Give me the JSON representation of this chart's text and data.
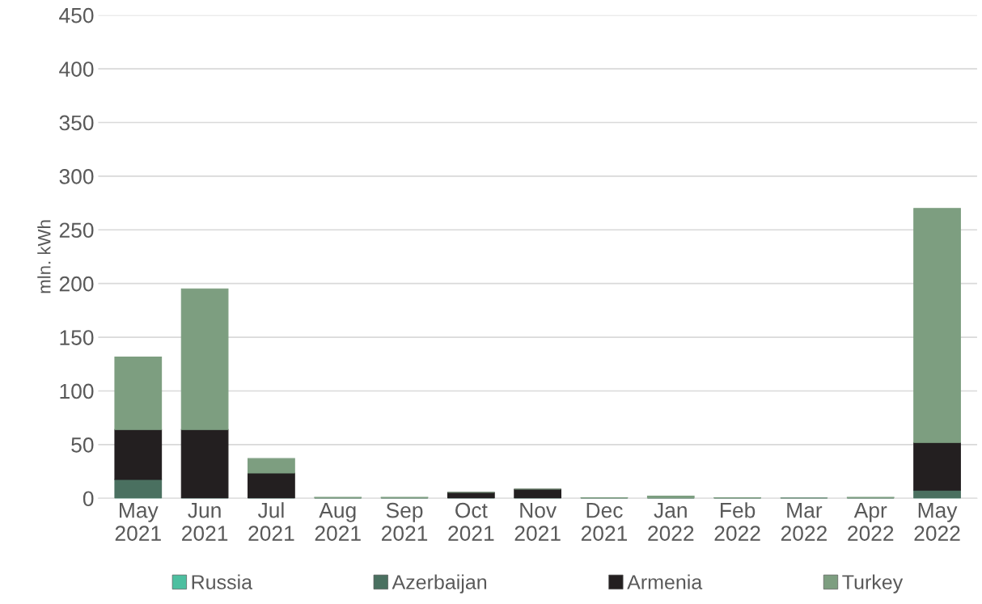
{
  "chart_data": {
    "type": "bar",
    "stacked": true,
    "ylabel": "mln. kWh",
    "categories": [
      "May\n2021",
      "Jun\n2021",
      "Jul\n2021",
      "Aug\n2021",
      "Sep\n2021",
      "Oct\n2021",
      "Nov\n2021",
      "Dec\n2021",
      "Jan\n2022",
      "Feb\n2022",
      "Mar\n2022",
      "Apr\n2022",
      "May\n2022"
    ],
    "series": [
      {
        "name": "Russia",
        "color": "#4dbfa0",
        "values": [
          0,
          0,
          0,
          0,
          0,
          0,
          0,
          0,
          0,
          0,
          0,
          0,
          0
        ]
      },
      {
        "name": "Azerbaijan",
        "color": "#4a7060",
        "values": [
          17.5,
          0,
          0,
          0,
          0,
          0,
          0,
          0,
          0,
          0,
          0,
          0,
          7.5
        ]
      },
      {
        "name": "Armenia",
        "color": "#231f20",
        "values": [
          46.5,
          64,
          23.5,
          0,
          0,
          5.5,
          8.5,
          0,
          0,
          0,
          0,
          0,
          44.5
        ]
      },
      {
        "name": "Turkey",
        "color": "#7d9e80",
        "values": [
          67.5,
          131,
          13.5,
          1,
          1,
          0,
          0,
          0.5,
          2,
          0.5,
          0.2,
          1,
          218
        ]
      }
    ],
    "ylim": [
      0,
      450
    ],
    "yticks": [
      0,
      50,
      100,
      150,
      200,
      250,
      300,
      350,
      400,
      450
    ],
    "grid": "y",
    "legend": "bottom"
  }
}
